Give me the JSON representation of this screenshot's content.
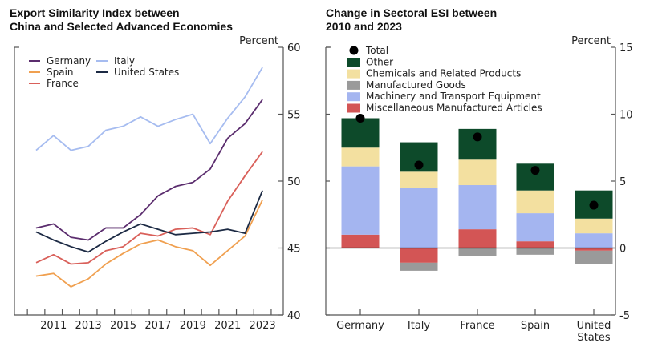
{
  "chart_data": [
    {
      "type": "line",
      "title": "Export Similarity Index between China and Selected Advanced Economies",
      "title_lines": [
        "Export Similarity Index between",
        "China and Selected Advanced Economies"
      ],
      "ylabel": "Percent",
      "ylim": [
        40,
        60
      ],
      "yticks": [
        40,
        45,
        50,
        55,
        60
      ],
      "x": [
        2010,
        2011,
        2012,
        2013,
        2014,
        2015,
        2016,
        2017,
        2018,
        2019,
        2020,
        2021,
        2022,
        2023
      ],
      "xtick_labels": [
        "2011",
        "2013",
        "2015",
        "2017",
        "2019",
        "2021",
        "2023"
      ],
      "legend_position": "top-left",
      "series": [
        {
          "name": "Germany",
          "color": "#5b2d6e",
          "values": [
            46.5,
            46.8,
            45.8,
            45.6,
            46.5,
            46.5,
            47.5,
            48.9,
            49.6,
            49.9,
            50.9,
            53.2,
            54.3,
            56.1
          ]
        },
        {
          "name": "Spain",
          "color": "#f0a050",
          "values": [
            42.9,
            43.1,
            42.1,
            42.7,
            43.8,
            44.6,
            45.3,
            45.6,
            45.1,
            44.8,
            43.7,
            44.8,
            45.9,
            48.6
          ]
        },
        {
          "name": "France",
          "color": "#d9605a",
          "values": [
            43.9,
            44.5,
            43.8,
            43.9,
            44.8,
            45.1,
            46.1,
            45.9,
            46.4,
            46.5,
            46.0,
            48.5,
            50.4,
            52.2
          ]
        },
        {
          "name": "Italy",
          "color": "#a6bcf0",
          "values": [
            52.3,
            53.4,
            52.3,
            52.6,
            53.8,
            54.1,
            54.8,
            54.1,
            54.6,
            55.0,
            52.8,
            54.7,
            56.3,
            58.5
          ]
        },
        {
          "name": "United States",
          "color": "#1c2a44",
          "values": [
            46.2,
            45.6,
            45.1,
            44.7,
            45.5,
            46.2,
            46.8,
            46.4,
            46.0,
            46.1,
            46.2,
            46.4,
            46.1,
            49.3
          ]
        }
      ]
    },
    {
      "type": "bar",
      "stacked": true,
      "title": "Change in Sectoral ESI between 2010 and 2023",
      "title_lines": [
        "Change in Sectoral ESI between",
        "2010 and 2023"
      ],
      "ylabel": "Percent",
      "ylim": [
        -5,
        15
      ],
      "yticks": [
        -5,
        0,
        5,
        10,
        15
      ],
      "categories": [
        "Germany",
        "Italy",
        "France",
        "Spain",
        "United States"
      ],
      "category_lines": [
        [
          "Germany"
        ],
        [
          "Italy"
        ],
        [
          "France"
        ],
        [
          "Spain"
        ],
        [
          "United",
          "States"
        ]
      ],
      "legend_position": "top-left",
      "series": [
        {
          "name": "Miscellaneous Manufactured Articles",
          "color": "#d35555",
          "values": [
            1.0,
            -1.1,
            1.4,
            0.5,
            -0.2
          ]
        },
        {
          "name": "Manufactured Goods",
          "color": "#9a9a9a",
          "values": [
            0.0,
            -0.6,
            -0.6,
            -0.5,
            -1.0
          ]
        },
        {
          "name": "Machinery and Transport Equipment",
          "color": "#a4b5f0",
          "values": [
            5.1,
            4.5,
            3.3,
            2.1,
            1.1
          ]
        },
        {
          "name": "Chemicals and Related Products",
          "color": "#f3e0a0",
          "values": [
            1.4,
            1.2,
            1.9,
            1.7,
            1.1
          ]
        },
        {
          "name": "Other",
          "color": "#0d4a2a",
          "values": [
            2.2,
            2.2,
            2.3,
            2.0,
            2.1
          ]
        }
      ],
      "total": {
        "name": "Total",
        "color": "#000000",
        "values": [
          9.7,
          6.2,
          8.3,
          5.8,
          3.2
        ]
      },
      "legend_order": [
        "Total",
        "Other",
        "Chemicals and Related Products",
        "Manufactured Goods",
        "Machinery and Transport Equipment",
        "Miscellaneous Manufactured Articles"
      ]
    }
  ]
}
